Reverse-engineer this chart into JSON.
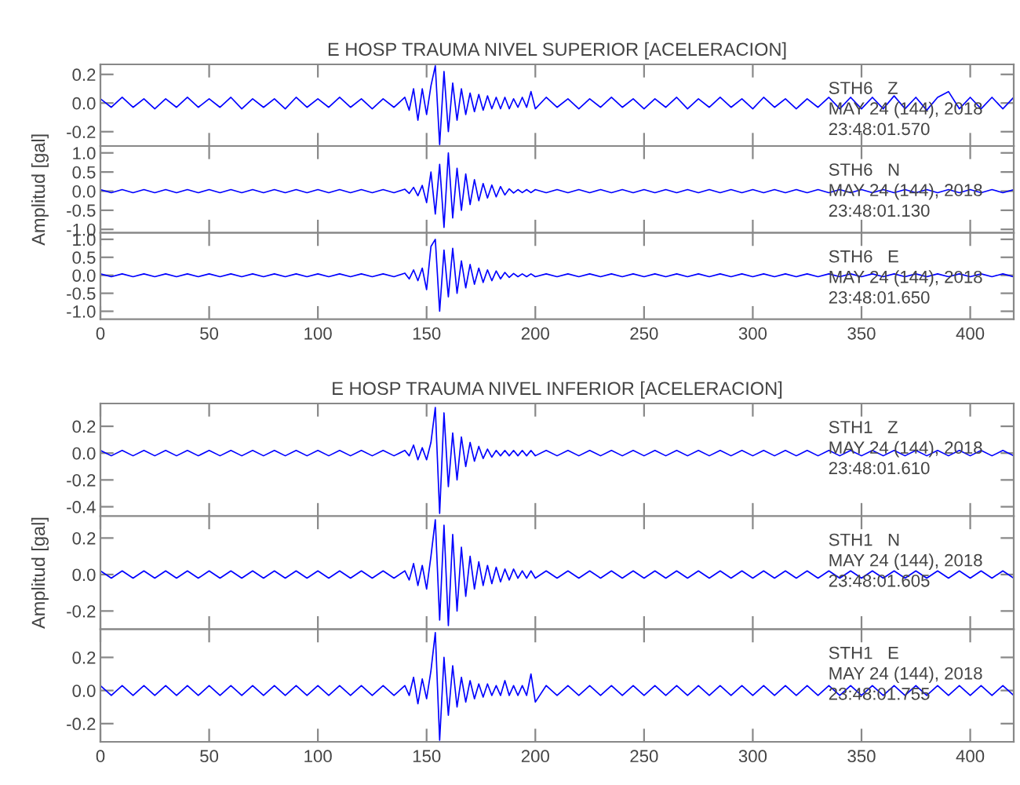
{
  "chart_data": [
    {
      "type": "line",
      "title": "E HOSP TRAUMA NIVEL SUPERIOR [ACELERACION]",
      "xlim": [
        0,
        420
      ],
      "xticks": [
        0,
        50,
        100,
        150,
        200,
        250,
        300,
        350,
        400
      ],
      "ylim": [
        -0.3,
        0.27
      ],
      "yticks": [
        {
          "value": 0.2,
          "label": "0.2"
        },
        {
          "value": 0,
          "label": "0.0"
        },
        {
          "value": -0.2,
          "label": "-0.2"
        }
      ],
      "tick_labels": "y",
      "grid": false,
      "legend": false,
      "annotations": [
        "STH6   Z",
        "MAY 24 (144), 2018",
        "23:48:01.570"
      ],
      "x": [
        0,
        5,
        10,
        15,
        20,
        25,
        30,
        35,
        40,
        45,
        50,
        55,
        60,
        65,
        70,
        75,
        80,
        85,
        90,
        95,
        100,
        105,
        110,
        115,
        120,
        125,
        130,
        135,
        140,
        142,
        144,
        146,
        148,
        150,
        152,
        154,
        156,
        158,
        160,
        162,
        164,
        166,
        168,
        170,
        172,
        174,
        176,
        178,
        180,
        182,
        184,
        186,
        188,
        190,
        192,
        194,
        196,
        198,
        200,
        205,
        210,
        215,
        220,
        225,
        230,
        235,
        240,
        245,
        250,
        255,
        260,
        265,
        270,
        275,
        280,
        285,
        290,
        295,
        300,
        305,
        310,
        315,
        320,
        325,
        330,
        335,
        340,
        345,
        350,
        355,
        360,
        365,
        370,
        375,
        380,
        385,
        390,
        395,
        400,
        405,
        410,
        415,
        420
      ],
      "series": [
        {
          "color": "#0000ff",
          "values": [
            0.03,
            -0.03,
            0.04,
            -0.03,
            0.03,
            -0.04,
            0.03,
            -0.03,
            0.04,
            -0.03,
            0.03,
            -0.03,
            0.04,
            -0.04,
            0.03,
            -0.03,
            0.03,
            -0.04,
            0.04,
            -0.03,
            0.03,
            -0.03,
            0.04,
            -0.03,
            0.03,
            -0.04,
            0.03,
            -0.03,
            0.04,
            -0.05,
            0.1,
            -0.12,
            0.1,
            -0.08,
            0.12,
            0.26,
            -0.29,
            0.22,
            -0.2,
            0.14,
            -0.12,
            0.1,
            -0.08,
            0.07,
            -0.06,
            0.06,
            -0.05,
            0.05,
            -0.04,
            0.04,
            -0.04,
            0.04,
            -0.04,
            0.03,
            -0.03,
            0.04,
            -0.03,
            0.08,
            -0.04,
            0.04,
            -0.03,
            0.03,
            -0.04,
            0.03,
            -0.03,
            0.04,
            -0.03,
            0.03,
            -0.04,
            0.03,
            -0.03,
            0.04,
            -0.04,
            0.03,
            -0.03,
            0.04,
            -0.03,
            0.03,
            -0.04,
            0.04,
            -0.03,
            0.03,
            -0.04,
            0.03,
            -0.03,
            0.04,
            -0.04,
            0.04,
            -0.04,
            0.04,
            -0.04,
            0.05,
            -0.04,
            0.04,
            -0.05,
            0.04,
            0.08,
            -0.04,
            0.04,
            -0.04,
            0.04,
            -0.04,
            0.04
          ]
        }
      ]
    },
    {
      "type": "line",
      "ylabel": "Amplitud [gal]",
      "xlim": [
        0,
        420
      ],
      "xticks": [
        0,
        50,
        100,
        150,
        200,
        250,
        300,
        350,
        400
      ],
      "ylim": [
        -1.09,
        1.18
      ],
      "yticks": [
        {
          "value": 1,
          "label": "1.0"
        },
        {
          "value": 0.5,
          "label": "0.5"
        },
        {
          "value": 0,
          "label": "0.0"
        },
        {
          "value": -0.5,
          "label": "-0.5"
        },
        {
          "value": -1,
          "label": "-1.0"
        }
      ],
      "tick_labels": "y",
      "grid": false,
      "legend": false,
      "annotations": [
        "STH6   N",
        "MAY 24 (144), 2018",
        "23:48:01.130"
      ],
      "x": [
        0,
        5,
        10,
        15,
        20,
        25,
        30,
        35,
        40,
        45,
        50,
        55,
        60,
        65,
        70,
        75,
        80,
        85,
        90,
        95,
        100,
        105,
        110,
        115,
        120,
        125,
        130,
        135,
        140,
        142,
        144,
        146,
        148,
        150,
        152,
        154,
        156,
        158,
        160,
        162,
        164,
        166,
        168,
        170,
        172,
        174,
        176,
        178,
        180,
        182,
        184,
        186,
        188,
        190,
        192,
        194,
        196,
        198,
        200,
        205,
        210,
        215,
        220,
        225,
        230,
        235,
        240,
        245,
        250,
        255,
        260,
        265,
        270,
        275,
        280,
        285,
        290,
        295,
        300,
        305,
        310,
        315,
        320,
        325,
        330,
        335,
        340,
        345,
        350,
        355,
        360,
        365,
        370,
        375,
        380,
        385,
        390,
        395,
        400,
        405,
        410,
        415,
        420
      ],
      "series": [
        {
          "color": "#0000ff",
          "values": [
            0.04,
            -0.04,
            0.04,
            -0.04,
            0.04,
            -0.04,
            0.04,
            -0.04,
            0.04,
            -0.04,
            0.04,
            -0.04,
            0.04,
            -0.04,
            0.04,
            -0.04,
            0.04,
            -0.04,
            0.04,
            -0.04,
            0.04,
            -0.04,
            0.04,
            -0.04,
            0.04,
            -0.04,
            0.04,
            -0.04,
            0.05,
            -0.06,
            0.1,
            -0.12,
            0.15,
            -0.3,
            0.5,
            -0.6,
            0.7,
            -0.95,
            1.0,
            -0.7,
            0.6,
            -0.5,
            0.45,
            -0.35,
            0.3,
            -0.25,
            0.2,
            -0.18,
            0.16,
            -0.15,
            0.12,
            -0.1,
            0.06,
            -0.05,
            0.04,
            -0.04,
            0.04,
            -0.04,
            0.04,
            -0.04,
            0.04,
            -0.04,
            0.04,
            -0.04,
            0.04,
            -0.04,
            0.04,
            -0.04,
            0.04,
            -0.04,
            0.04,
            -0.04,
            0.04,
            -0.04,
            0.04,
            -0.04,
            0.04,
            -0.04,
            0.04,
            -0.04,
            0.04,
            -0.04,
            0.04,
            -0.04,
            0.04,
            -0.04,
            0.04,
            -0.04,
            0.04,
            -0.04,
            0.04,
            -0.04,
            0.04,
            -0.04,
            0.04,
            -0.04,
            0.04,
            -0.04,
            0.04,
            -0.04,
            0.04,
            -0.04,
            0.04
          ]
        }
      ]
    },
    {
      "type": "line",
      "xlim": [
        0,
        420
      ],
      "xticks": [
        0,
        50,
        100,
        150,
        200,
        250,
        300,
        350,
        400
      ],
      "ylim": [
        -1.22,
        1.18
      ],
      "yticks": [
        {
          "value": 1,
          "label": "1.0"
        },
        {
          "value": 0.5,
          "label": "0.5"
        },
        {
          "value": 0,
          "label": "0.0"
        },
        {
          "value": -0.5,
          "label": "-0.5"
        },
        {
          "value": -1,
          "label": "-1.0"
        }
      ],
      "grid": false,
      "legend": false,
      "annotations": [
        "STH6   E",
        "MAY 24 (144), 2018",
        "23:48:01.650"
      ],
      "x": [
        0,
        5,
        10,
        15,
        20,
        25,
        30,
        35,
        40,
        45,
        50,
        55,
        60,
        65,
        70,
        75,
        80,
        85,
        90,
        95,
        100,
        105,
        110,
        115,
        120,
        125,
        130,
        135,
        140,
        142,
        144,
        146,
        148,
        150,
        152,
        154,
        156,
        158,
        160,
        162,
        164,
        166,
        168,
        170,
        172,
        174,
        176,
        178,
        180,
        182,
        184,
        186,
        188,
        190,
        192,
        194,
        196,
        198,
        200,
        205,
        210,
        215,
        220,
        225,
        230,
        235,
        240,
        245,
        250,
        255,
        260,
        265,
        270,
        275,
        280,
        285,
        290,
        295,
        300,
        305,
        310,
        315,
        320,
        325,
        330,
        335,
        340,
        345,
        350,
        355,
        360,
        365,
        370,
        375,
        380,
        385,
        390,
        395,
        400,
        405,
        410,
        415,
        420
      ],
      "series": [
        {
          "color": "#0000ff",
          "values": [
            0.04,
            -0.04,
            0.04,
            -0.04,
            0.04,
            -0.04,
            0.04,
            -0.04,
            0.04,
            -0.04,
            0.04,
            -0.04,
            0.04,
            -0.04,
            0.04,
            -0.04,
            0.04,
            -0.04,
            0.04,
            -0.04,
            0.04,
            -0.04,
            0.04,
            -0.04,
            0.04,
            -0.04,
            0.04,
            -0.04,
            0.06,
            -0.1,
            0.15,
            -0.15,
            0.2,
            -0.4,
            0.8,
            1.0,
            -1.0,
            0.7,
            -0.6,
            0.75,
            -0.5,
            0.4,
            -0.35,
            0.3,
            -0.25,
            0.2,
            -0.2,
            0.15,
            -0.15,
            0.12,
            -0.1,
            0.08,
            -0.06,
            0.05,
            -0.04,
            0.04,
            -0.04,
            0.04,
            -0.04,
            0.04,
            -0.04,
            0.04,
            -0.04,
            0.04,
            -0.04,
            0.04,
            -0.04,
            0.04,
            -0.04,
            0.04,
            -0.04,
            0.04,
            -0.04,
            0.04,
            -0.04,
            0.04,
            -0.04,
            0.04,
            -0.04,
            0.04,
            -0.04,
            0.04,
            -0.04,
            0.04,
            -0.04,
            0.04,
            -0.04,
            0.04,
            -0.04,
            0.04,
            -0.04,
            0.04,
            -0.04,
            0.04,
            -0.04,
            0.04,
            -0.04,
            0.04,
            -0.04,
            0.04,
            -0.04,
            0.04,
            -0.04
          ]
        }
      ]
    },
    {
      "type": "line",
      "title": "E HOSP TRAUMA NIVEL INFERIOR [ACELERACION]",
      "xlim": [
        0,
        420
      ],
      "xticks": [
        0,
        50,
        100,
        150,
        200,
        250,
        300,
        350,
        400
      ],
      "ylim": [
        -0.47,
        0.37
      ],
      "yticks": [
        {
          "value": 0.2,
          "label": "0.2"
        },
        {
          "value": 0,
          "label": "0.0"
        },
        {
          "value": -0.2,
          "label": "-0.2"
        },
        {
          "value": -0.4,
          "label": "-0.4"
        }
      ],
      "tick_labels": "y",
      "grid": false,
      "legend": false,
      "annotations": [
        "STH1   Z",
        "MAY 24 (144), 2018",
        "23:48:01.610"
      ],
      "x": [
        0,
        5,
        10,
        15,
        20,
        25,
        30,
        35,
        40,
        45,
        50,
        55,
        60,
        65,
        70,
        75,
        80,
        85,
        90,
        95,
        100,
        105,
        110,
        115,
        120,
        125,
        130,
        135,
        140,
        142,
        144,
        146,
        148,
        150,
        152,
        154,
        156,
        158,
        160,
        162,
        164,
        166,
        168,
        170,
        172,
        174,
        176,
        178,
        180,
        182,
        184,
        186,
        188,
        190,
        192,
        194,
        196,
        198,
        200,
        205,
        210,
        215,
        220,
        225,
        230,
        235,
        240,
        245,
        250,
        255,
        260,
        265,
        270,
        275,
        280,
        285,
        290,
        295,
        300,
        305,
        310,
        315,
        320,
        325,
        330,
        335,
        340,
        345,
        350,
        355,
        360,
        365,
        370,
        375,
        380,
        385,
        390,
        395,
        400,
        405,
        410,
        415,
        420
      ],
      "series": [
        {
          "color": "#0000ff",
          "values": [
            0.02,
            -0.02,
            0.02,
            -0.02,
            0.02,
            -0.02,
            0.02,
            -0.02,
            0.02,
            -0.02,
            0.02,
            -0.02,
            0.02,
            -0.02,
            0.02,
            -0.02,
            0.02,
            -0.02,
            0.02,
            -0.02,
            0.02,
            -0.02,
            0.02,
            -0.02,
            0.02,
            -0.02,
            0.02,
            -0.02,
            0.02,
            -0.02,
            0.06,
            -0.05,
            0.04,
            -0.05,
            0.08,
            0.34,
            -0.45,
            0.3,
            -0.25,
            0.15,
            -0.2,
            0.12,
            -0.1,
            0.08,
            -0.06,
            0.05,
            -0.04,
            0.03,
            -0.03,
            0.02,
            -0.02,
            0.02,
            -0.02,
            0.02,
            -0.02,
            0.02,
            -0.02,
            0.02,
            -0.02,
            0.02,
            -0.02,
            0.02,
            -0.02,
            0.02,
            -0.02,
            0.02,
            -0.02,
            0.02,
            -0.02,
            0.02,
            -0.02,
            0.02,
            -0.02,
            0.02,
            -0.02,
            0.02,
            -0.02,
            0.02,
            -0.02,
            0.02,
            -0.02,
            0.02,
            -0.02,
            0.02,
            -0.02,
            0.02,
            -0.02,
            0.02,
            -0.02,
            0.02,
            -0.02,
            0.02,
            -0.02,
            0.02,
            -0.02,
            0.02,
            -0.02,
            0.02,
            -0.02,
            0.02,
            -0.02,
            0.02,
            -0.02
          ]
        }
      ]
    },
    {
      "type": "line",
      "ylabel": "Amplitud [gal]",
      "xlim": [
        0,
        420
      ],
      "xticks": [
        0,
        50,
        100,
        150,
        200,
        250,
        300,
        350,
        400
      ],
      "ylim": [
        -0.3,
        0.32
      ],
      "yticks": [
        {
          "value": 0.2,
          "label": "0.2"
        },
        {
          "value": 0,
          "label": "0.0"
        },
        {
          "value": -0.2,
          "label": "-0.2"
        }
      ],
      "tick_labels": "y",
      "grid": false,
      "legend": false,
      "annotations": [
        "STH1   N",
        "MAY 24 (144), 2018",
        "23:48:01.605"
      ],
      "x": [
        0,
        5,
        10,
        15,
        20,
        25,
        30,
        35,
        40,
        45,
        50,
        55,
        60,
        65,
        70,
        75,
        80,
        85,
        90,
        95,
        100,
        105,
        110,
        115,
        120,
        125,
        130,
        135,
        140,
        142,
        144,
        146,
        148,
        150,
        152,
        154,
        156,
        158,
        160,
        162,
        164,
        166,
        168,
        170,
        172,
        174,
        176,
        178,
        180,
        182,
        184,
        186,
        188,
        190,
        192,
        194,
        196,
        198,
        200,
        205,
        210,
        215,
        220,
        225,
        230,
        235,
        240,
        245,
        250,
        255,
        260,
        265,
        270,
        275,
        280,
        285,
        290,
        295,
        300,
        305,
        310,
        315,
        320,
        325,
        330,
        335,
        340,
        345,
        350,
        355,
        360,
        365,
        370,
        375,
        380,
        385,
        390,
        395,
        400,
        405,
        410,
        415,
        420
      ],
      "series": [
        {
          "color": "#0000ff",
          "values": [
            0.02,
            -0.02,
            0.02,
            -0.02,
            0.02,
            -0.02,
            0.02,
            -0.02,
            0.02,
            -0.02,
            0.02,
            -0.02,
            0.02,
            -0.02,
            0.02,
            -0.02,
            0.02,
            -0.02,
            0.02,
            -0.02,
            0.02,
            -0.02,
            0.02,
            -0.02,
            0.02,
            -0.02,
            0.02,
            -0.02,
            0.02,
            -0.03,
            0.06,
            -0.06,
            0.05,
            -0.08,
            0.1,
            0.3,
            -0.25,
            0.27,
            -0.28,
            0.22,
            -0.2,
            0.15,
            -0.12,
            0.1,
            -0.08,
            0.07,
            -0.06,
            0.05,
            -0.05,
            0.04,
            -0.04,
            0.03,
            -0.03,
            0.03,
            -0.02,
            0.02,
            -0.02,
            0.02,
            -0.02,
            0.02,
            -0.02,
            0.02,
            -0.02,
            0.02,
            -0.02,
            0.02,
            -0.02,
            0.02,
            -0.02,
            0.02,
            -0.02,
            0.02,
            -0.02,
            0.02,
            -0.02,
            0.02,
            -0.02,
            0.02,
            -0.02,
            0.02,
            -0.02,
            0.02,
            -0.02,
            0.02,
            -0.02,
            0.02,
            -0.02,
            0.02,
            -0.02,
            0.02,
            -0.02,
            0.02,
            -0.02,
            0.02,
            -0.02,
            0.02,
            -0.02,
            0.02,
            -0.02,
            0.02,
            -0.02,
            0.02,
            -0.02
          ]
        }
      ]
    },
    {
      "type": "line",
      "xlim": [
        0,
        420
      ],
      "xticks": [
        0,
        50,
        100,
        150,
        200,
        250,
        300,
        350,
        400
      ],
      "ylim": [
        -0.31,
        0.37
      ],
      "yticks": [
        {
          "value": 0.2,
          "label": "0.2"
        },
        {
          "value": 0,
          "label": "0.0"
        },
        {
          "value": -0.2,
          "label": "-0.2"
        }
      ],
      "grid": false,
      "legend": false,
      "annotations": [
        "STH1   E",
        "MAY 24 (144), 2018",
        "23:48:01.755"
      ],
      "x": [
        0,
        5,
        10,
        15,
        20,
        25,
        30,
        35,
        40,
        45,
        50,
        55,
        60,
        65,
        70,
        75,
        80,
        85,
        90,
        95,
        100,
        105,
        110,
        115,
        120,
        125,
        130,
        135,
        140,
        142,
        144,
        146,
        148,
        150,
        152,
        154,
        156,
        158,
        160,
        162,
        164,
        166,
        168,
        170,
        172,
        174,
        176,
        178,
        180,
        182,
        184,
        186,
        188,
        190,
        192,
        194,
        196,
        198,
        200,
        205,
        210,
        215,
        220,
        225,
        230,
        235,
        240,
        245,
        250,
        255,
        260,
        265,
        270,
        275,
        280,
        285,
        290,
        295,
        300,
        305,
        310,
        315,
        320,
        325,
        330,
        335,
        340,
        345,
        350,
        355,
        360,
        365,
        370,
        375,
        380,
        385,
        390,
        395,
        400,
        405,
        410,
        415,
        420
      ],
      "series": [
        {
          "color": "#0000ff",
          "values": [
            0.03,
            -0.03,
            0.03,
            -0.03,
            0.03,
            -0.03,
            0.03,
            -0.03,
            0.03,
            -0.03,
            0.03,
            -0.03,
            0.03,
            -0.03,
            0.03,
            -0.03,
            0.03,
            -0.03,
            0.03,
            -0.03,
            0.03,
            -0.03,
            0.03,
            -0.03,
            0.03,
            -0.03,
            0.03,
            -0.03,
            0.03,
            -0.03,
            0.08,
            -0.08,
            0.07,
            -0.05,
            0.12,
            0.35,
            -0.3,
            0.2,
            -0.15,
            0.15,
            -0.1,
            0.08,
            -0.07,
            0.06,
            -0.05,
            0.04,
            -0.04,
            0.04,
            -0.03,
            0.03,
            -0.03,
            0.06,
            -0.03,
            0.03,
            -0.03,
            0.03,
            -0.03,
            0.1,
            -0.07,
            0.03,
            -0.03,
            0.03,
            -0.03,
            0.03,
            -0.03,
            0.03,
            -0.03,
            0.03,
            -0.03,
            0.03,
            -0.03,
            0.03,
            -0.03,
            0.03,
            -0.03,
            0.03,
            -0.03,
            0.03,
            -0.03,
            0.03,
            -0.03,
            0.03,
            -0.03,
            0.03,
            -0.03,
            0.03,
            -0.03,
            0.03,
            -0.03,
            0.03,
            -0.03,
            0.03,
            -0.03,
            0.03,
            -0.03,
            0.03,
            -0.03,
            0.03,
            -0.03,
            0.03,
            -0.03,
            0.03,
            -0.03
          ]
        }
      ]
    }
  ]
}
